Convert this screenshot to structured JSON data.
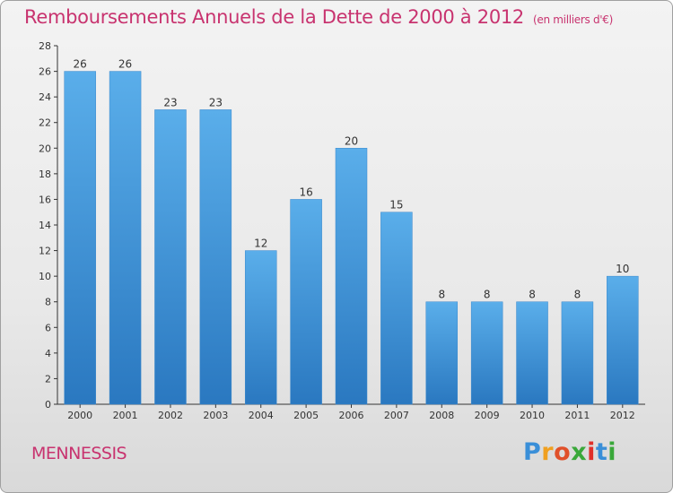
{
  "chart_data": {
    "type": "bar",
    "title": "Remboursements Annuels de la Dette de 2000 à 2012",
    "subtitle": "(en milliers d'€)",
    "categories": [
      "2000",
      "2001",
      "2002",
      "2003",
      "2004",
      "2005",
      "2006",
      "2007",
      "2008",
      "2009",
      "2010",
      "2011",
      "2012"
    ],
    "values": [
      26,
      26,
      23,
      23,
      12,
      16,
      20,
      15,
      8,
      8,
      8,
      8,
      10
    ],
    "ylim": [
      0,
      28
    ],
    "yticks": [
      0,
      2,
      4,
      6,
      8,
      10,
      12,
      14,
      16,
      18,
      20,
      22,
      24,
      26,
      28
    ],
    "xlabel": "",
    "ylabel": "",
    "grid": false,
    "bar_color": "#4a9fe0"
  },
  "commune": "MENNESSIS",
  "logo": {
    "text": "Proxiti",
    "letter_colors": [
      "#3a8fd8",
      "#f0a020",
      "#e0502a",
      "#3aa83a",
      "#e0302a",
      "#3a8fd8",
      "#3aa83a"
    ]
  },
  "colors": {
    "title": "#c8336f",
    "axis": "#333333"
  }
}
